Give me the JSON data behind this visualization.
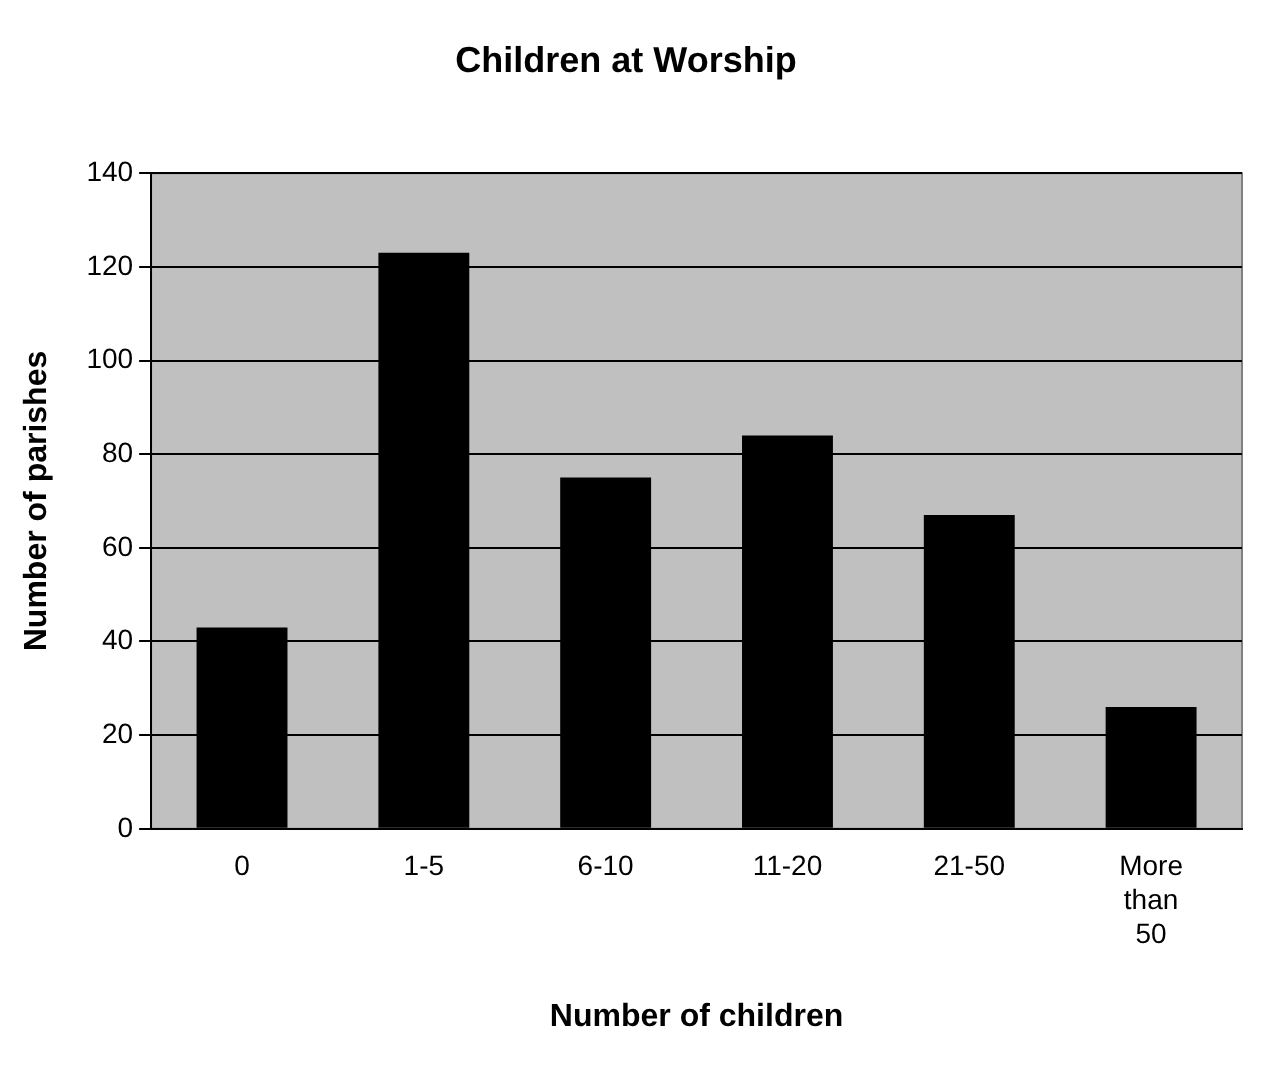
{
  "chart_data": {
    "type": "bar",
    "title": "Children at Worship",
    "xlabel": "Number of children",
    "ylabel": "Number of parishes",
    "categories": [
      "0",
      "1-5",
      "6-10",
      "11-20",
      "21-50",
      "More than 50"
    ],
    "values": [
      43,
      123,
      75,
      84,
      67,
      26
    ],
    "color": "#000000",
    "ylim": [
      0,
      140
    ],
    "yticks": [
      0,
      20,
      40,
      60,
      80,
      100,
      120,
      140
    ],
    "grid": "y",
    "legend": false
  }
}
